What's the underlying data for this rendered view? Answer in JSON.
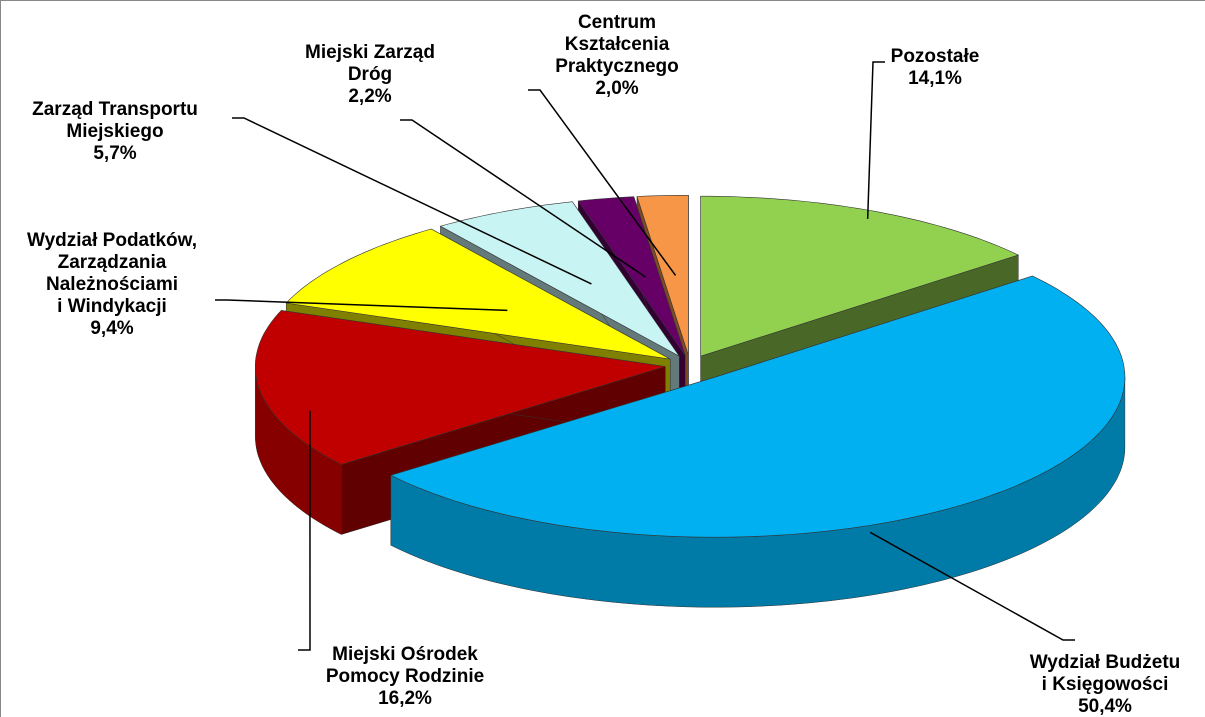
{
  "chart_data": {
    "type": "pie3d",
    "categories": [
      "Pozostałe",
      "Wydział Budżetu\ni Księgowości",
      "Miejski Ośrodek\nPomocy Rodzinie",
      "Wydział Podatków,\nZarządzania\nNależnościami\ni Windykacji",
      "Zarząd Transportu\nMiejskiego",
      "Miejski Zarząd\nDróg",
      "Centrum\nKształcenia\nPraktycznego"
    ],
    "values": [
      14.1,
      50.4,
      16.2,
      9.4,
      5.7,
      2.2,
      2.0
    ],
    "value_labels": [
      "14,1%",
      "50,4%",
      "16,2%",
      "9,4%",
      "5,7%",
      "2,2%",
      "2,0%"
    ],
    "colors": [
      "#92d050",
      "#00b0f0",
      "#c00000",
      "#ffff00",
      "#c8f4f4",
      "#660066",
      "#f79646"
    ]
  }
}
